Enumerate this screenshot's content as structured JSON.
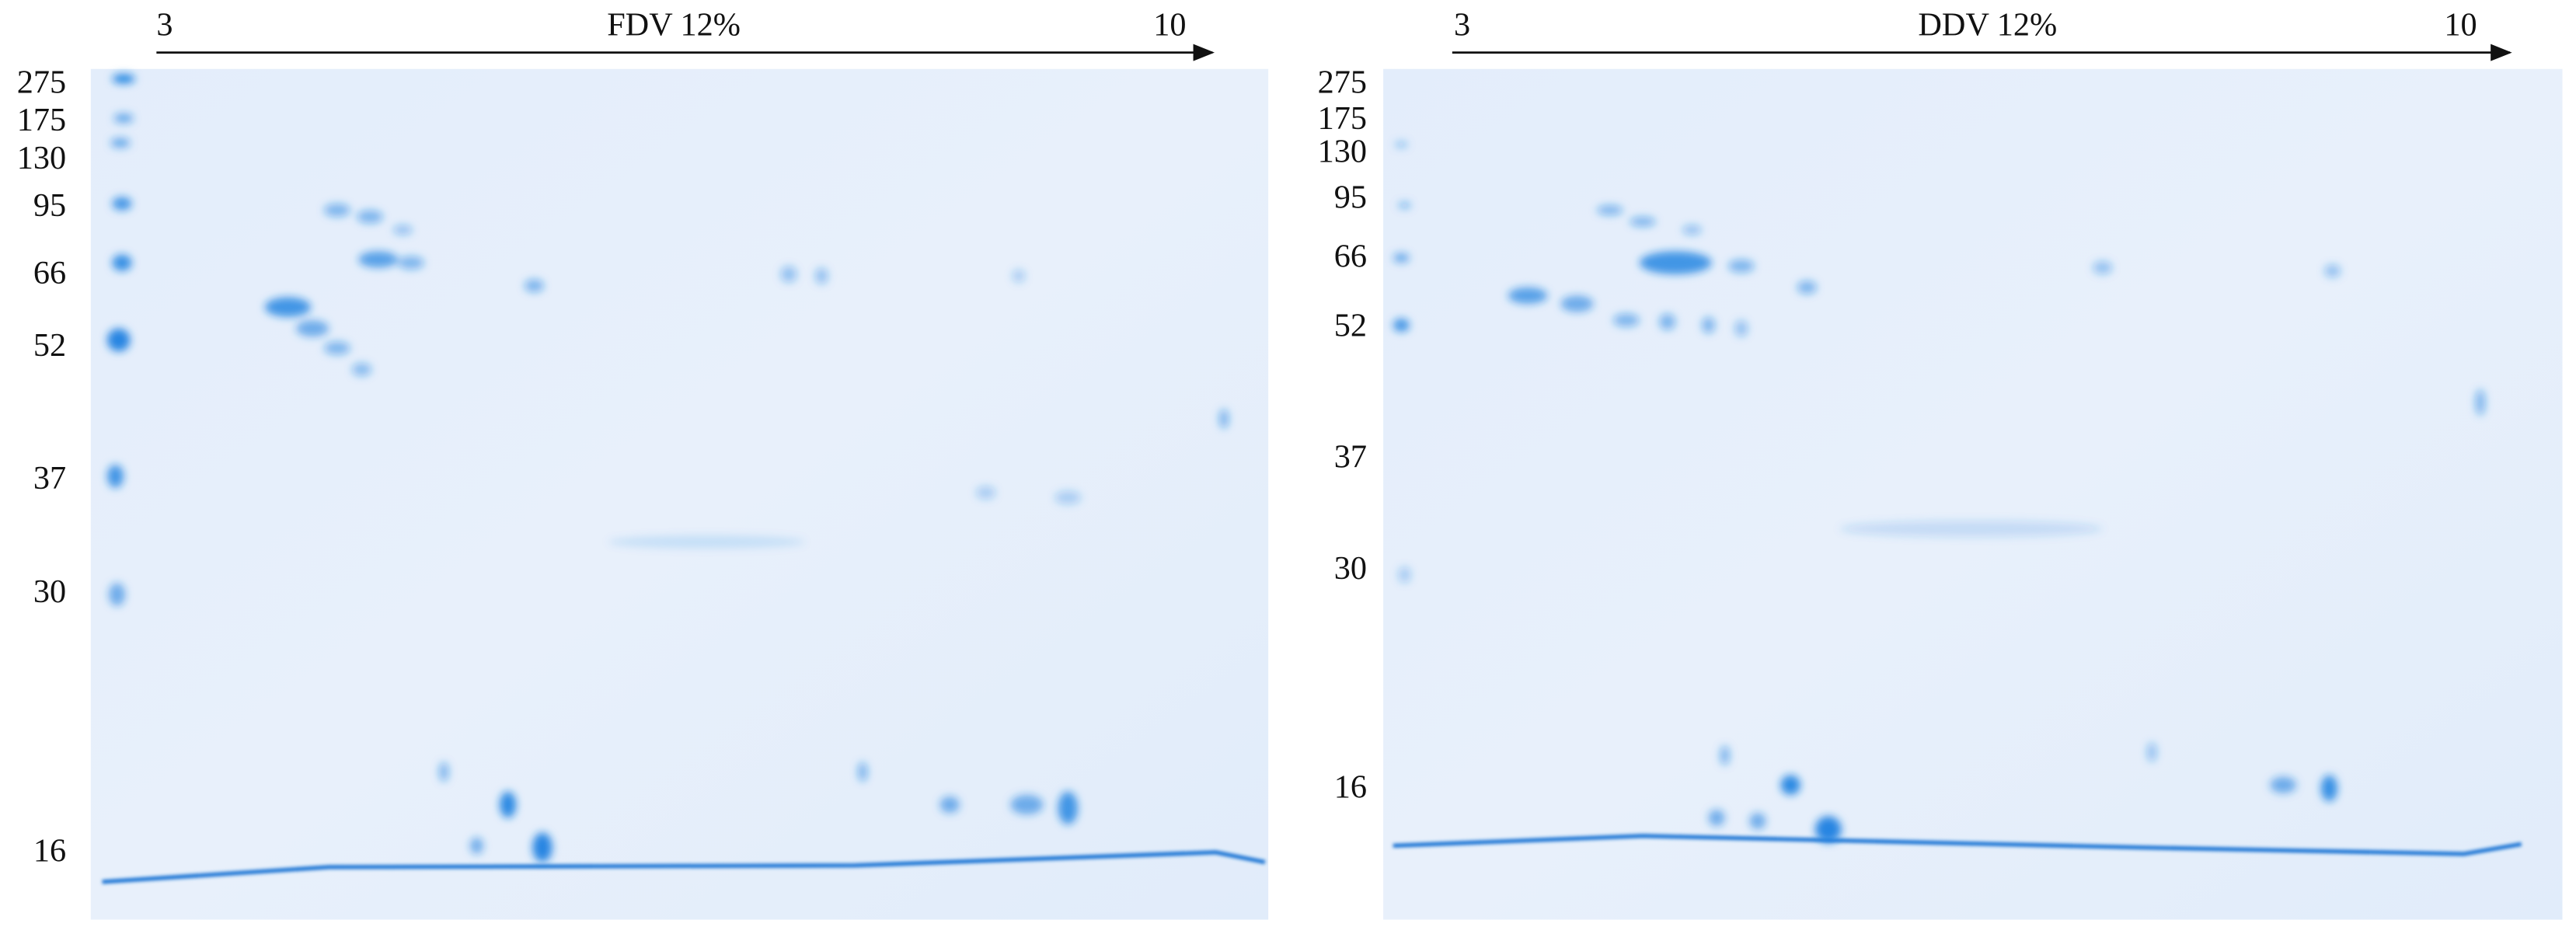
{
  "panels": [
    {
      "title": "FDV 12%",
      "ph_start": "3",
      "ph_end": "10",
      "mw_markers": [
        "275",
        "175",
        "130",
        "95",
        "66",
        "52",
        "37",
        "30",
        "16"
      ]
    },
    {
      "title": "DDV 12%",
      "ph_start": "3",
      "ph_end": "10",
      "mw_markers": [
        "275",
        "175",
        "130",
        "95",
        "66",
        "52",
        "37",
        "30",
        "16"
      ]
    }
  ]
}
